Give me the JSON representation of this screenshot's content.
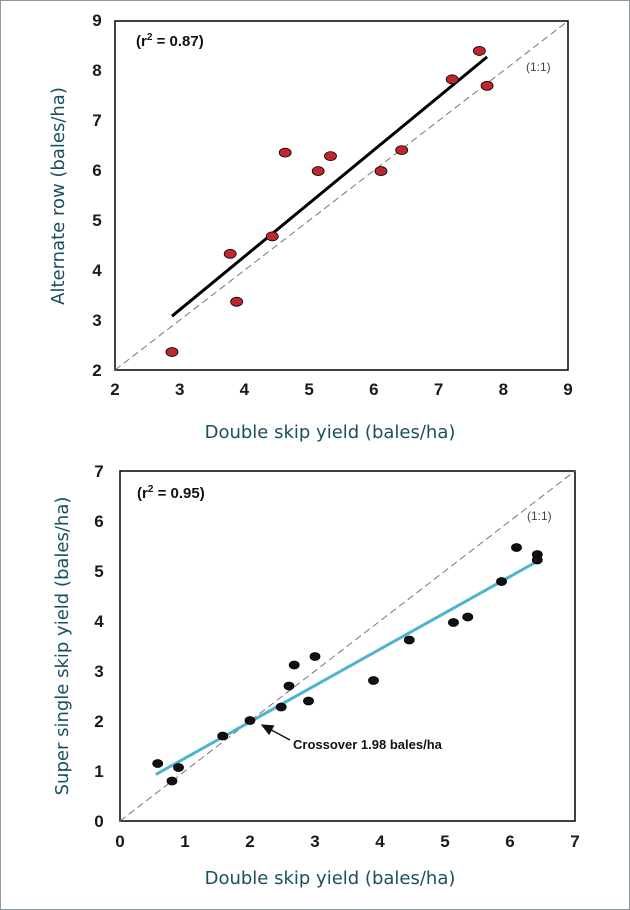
{
  "chart_data": [
    {
      "type": "scatter",
      "xlabel": "Double skip yield (bales/ha)",
      "ylabel": "Alternate row (bales/ha)",
      "xlim": [
        2,
        9
      ],
      "ylim": [
        2,
        9
      ],
      "xticks": [
        "2",
        "3",
        "4",
        "5",
        "6",
        "7",
        "8",
        "9"
      ],
      "yticks": [
        "2",
        "3",
        "4",
        "5",
        "6",
        "7",
        "8",
        "9"
      ],
      "r2_label": "(r",
      "r2_sup": "2",
      "r2_value": " = 0.87)",
      "reference_label": "(1:1)",
      "grid": false,
      "point_color": "#c0272d",
      "line_color": "#000000",
      "points": [
        {
          "x": 2.88,
          "y": 2.36
        },
        {
          "x": 3.78,
          "y": 4.33
        },
        {
          "x": 3.88,
          "y": 3.37
        },
        {
          "x": 4.43,
          "y": 4.68
        },
        {
          "x": 4.63,
          "y": 6.36
        },
        {
          "x": 5.14,
          "y": 5.99
        },
        {
          "x": 5.33,
          "y": 6.29
        },
        {
          "x": 6.11,
          "y": 5.99
        },
        {
          "x": 6.43,
          "y": 6.41
        },
        {
          "x": 7.21,
          "y": 7.83
        },
        {
          "x": 7.63,
          "y": 8.4
        },
        {
          "x": 7.75,
          "y": 7.7
        }
      ],
      "fit_line": {
        "x": [
          2.88,
          7.75
        ],
        "y": [
          3.08,
          8.28
        ]
      },
      "identity_line": {
        "x": [
          2,
          9
        ],
        "y": [
          2,
          9
        ]
      }
    },
    {
      "type": "scatter",
      "xlabel": "Double skip yield (bales/ha)",
      "ylabel": "Super single skip yield (bales/ha)",
      "xlim": [
        0,
        7
      ],
      "ylim": [
        0,
        7
      ],
      "xticks": [
        "0",
        "1",
        "2",
        "3",
        "4",
        "5",
        "6",
        "7"
      ],
      "yticks": [
        "0",
        "1",
        "2",
        "3",
        "4",
        "5",
        "6",
        "7"
      ],
      "r2_label": "(r",
      "r2_sup": "2",
      "r2_value": " = 0.95)",
      "reference_label": "(1:1)",
      "grid": false,
      "point_color": "#111111",
      "line_color": "#4fb3cf",
      "points": [
        {
          "x": 0.58,
          "y": 1.15
        },
        {
          "x": 0.8,
          "y": 0.8
        },
        {
          "x": 0.9,
          "y": 1.07
        },
        {
          "x": 1.58,
          "y": 1.7
        },
        {
          "x": 2.0,
          "y": 2.01
        },
        {
          "x": 2.48,
          "y": 2.28
        },
        {
          "x": 2.6,
          "y": 2.7
        },
        {
          "x": 2.68,
          "y": 3.12
        },
        {
          "x": 2.9,
          "y": 2.4
        },
        {
          "x": 3.0,
          "y": 3.29
        },
        {
          "x": 3.9,
          "y": 2.81
        },
        {
          "x": 4.45,
          "y": 3.62
        },
        {
          "x": 5.13,
          "y": 3.97
        },
        {
          "x": 5.35,
          "y": 4.08
        },
        {
          "x": 5.87,
          "y": 4.79
        },
        {
          "x": 6.1,
          "y": 5.47
        },
        {
          "x": 6.42,
          "y": 5.33
        },
        {
          "x": 6.42,
          "y": 5.22
        }
      ],
      "fit_line": {
        "x": [
          0.55,
          6.47
        ],
        "y": [
          0.93,
          5.23
        ]
      },
      "identity_line": {
        "x": [
          0,
          7
        ],
        "y": [
          0,
          7
        ]
      },
      "annotation": {
        "text": "Crossover 1.98 bales/ha",
        "x": 1.98,
        "y": 2.0
      }
    }
  ]
}
